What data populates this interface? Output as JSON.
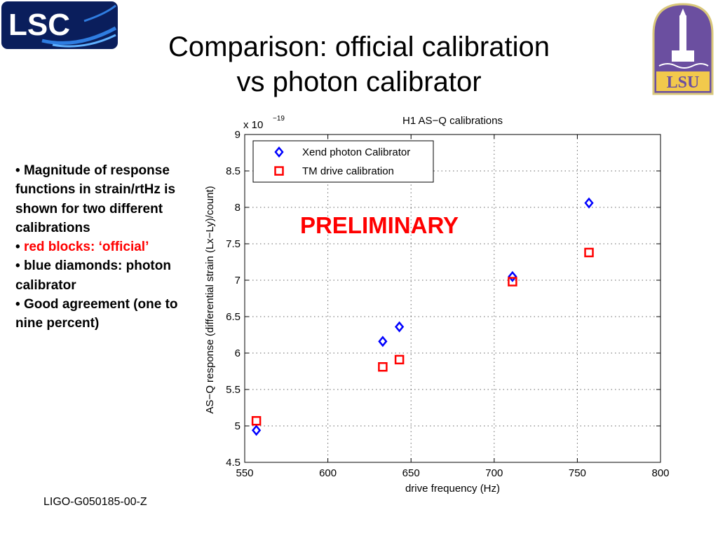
{
  "slide": {
    "title_line1": "Comparison: official calibration",
    "title_line2": "vs photon calibrator",
    "footer": "LIGO-G050185-00-Z",
    "logos": {
      "left": "LSC",
      "right": "LSU"
    },
    "bullets": [
      {
        "text": "Magnitude of response functions in strain/rtHz is shown for two different calibrations",
        "color": "#000000"
      },
      {
        "text": "red blocks: ‘official’",
        "color": "#ff0000"
      },
      {
        "text": "blue diamonds: photon calibrator",
        "color": "#000000"
      },
      {
        "text": "Good agreement (one to nine percent)",
        "color": "#000000"
      }
    ],
    "bullet_glyph": "•"
  },
  "chart_data": {
    "type": "scatter",
    "title": "H1 AS−Q calibrations",
    "xlabel": "drive frequency (Hz)",
    "ylabel": "AS−Q response (differential strain (Lx−Ly)/count)",
    "y_multiplier": "x 10",
    "y_multiplier_exp": "−19",
    "xlim": [
      550,
      800
    ],
    "ylim": [
      4.5,
      9
    ],
    "xticks": [
      "550",
      "600",
      "650",
      "700",
      "750",
      "800"
    ],
    "yticks": [
      "4.5",
      "5",
      "5.5",
      "6",
      "6.5",
      "7",
      "7.5",
      "8",
      "8.5",
      "9"
    ],
    "grid": true,
    "legend_position": "top-left",
    "annotation": "PRELIMINARY",
    "annotation_color": "#ff0000",
    "series": [
      {
        "name": "Xend photon Calibrator",
        "marker": "diamond",
        "color": "#0000ff",
        "x": [
          557,
          633,
          643,
          711,
          757
        ],
        "y": [
          4.94,
          6.16,
          6.36,
          7.05,
          8.06
        ]
      },
      {
        "name": "TM drive calibration",
        "marker": "square",
        "color": "#ff0000",
        "x": [
          557,
          633,
          643,
          711,
          757
        ],
        "y": [
          5.07,
          5.81,
          5.91,
          6.98,
          7.38
        ]
      }
    ]
  }
}
